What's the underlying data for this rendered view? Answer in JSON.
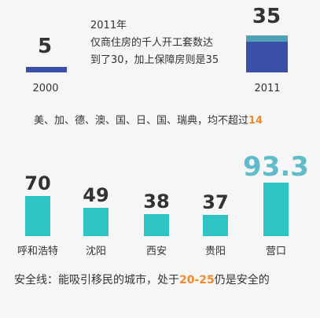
{
  "chart_data": [
    {
      "type": "bar",
      "categories": [
        "2000",
        "2011"
      ],
      "values": [
        5,
        35
      ],
      "colors": [
        "#3a4fa8",
        "#3a4fa8"
      ],
      "cap_color": "#4fa1b8",
      "annotation": [
        "2011年",
        "仅商住房的千人开工套数达",
        "到了30，加上保障房则是35"
      ]
    },
    {
      "type": "bar",
      "categories": [
        "呼和浩特",
        "沈阳",
        "西安",
        "贵阳",
        "营口"
      ],
      "values": [
        70,
        49,
        38,
        37,
        93.3
      ],
      "colors": [
        "#2ec4c4"
      ],
      "highlight_color": "#5fbcc8"
    }
  ],
  "notes": {
    "intl_prefix": "美、加、德、澳、国、日、国、瑞典，均不超过",
    "intl_value": "14",
    "safety_prefix": "安全线：能吸引移民的城市，处于",
    "safety_value": "20-25",
    "safety_suffix": "仍是安全的"
  }
}
